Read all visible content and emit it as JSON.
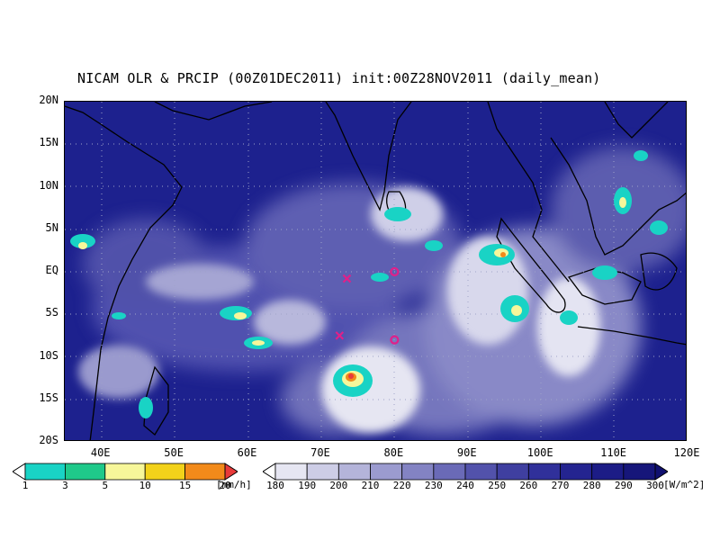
{
  "title": "NICAM OLR & PRCIP (00Z01DEC2011) init:00Z28NOV2011 (daily_mean)",
  "lat_labels": [
    "20N",
    "15N",
    "10N",
    "5N",
    "EQ",
    "5S",
    "10S",
    "15S",
    "20S"
  ],
  "lon_labels": [
    "40E",
    "50E",
    "60E",
    "70E",
    "80E",
    "90E",
    "100E",
    "110E",
    "120E"
  ],
  "map_extent": {
    "lon_min": 35,
    "lon_max": 120,
    "lat_min": -20,
    "lat_max": 20
  },
  "precip_colorbar": {
    "labels": [
      "1",
      "3",
      "5",
      "10",
      "15",
      "20"
    ],
    "unit": "[mm/h]",
    "colors": [
      "#ffffff",
      "#19d3c5",
      "#1fc98a",
      "#f7f79a",
      "#f2d21a",
      "#f28a1a",
      "#e83a3a"
    ]
  },
  "olr_colorbar": {
    "labels": [
      "180",
      "190",
      "200",
      "210",
      "220",
      "230",
      "240",
      "250",
      "260",
      "270",
      "280",
      "290",
      "300"
    ],
    "unit": "[W/m^2]",
    "colors": [
      "#ffffff",
      "#e6e6f2",
      "#cdcde6",
      "#b4b4da",
      "#9b9bcf",
      "#8383c3",
      "#6a6ab7",
      "#5252ab",
      "#3f3fa0",
      "#30309a",
      "#242490",
      "#1c1c86",
      "#16167a",
      "#101070"
    ]
  },
  "markers": [
    {
      "symbol": "x",
      "lon": 73.5,
      "lat": -0.8,
      "color": "#e0208a"
    },
    {
      "symbol": "o",
      "lon": 80,
      "lat": 0,
      "color": "#e0208a"
    },
    {
      "symbol": "x",
      "lon": 72.5,
      "lat": -7.5,
      "color": "#e0208a"
    },
    {
      "symbol": "o",
      "lon": 80,
      "lat": -8,
      "color": "#e0208a"
    }
  ]
}
